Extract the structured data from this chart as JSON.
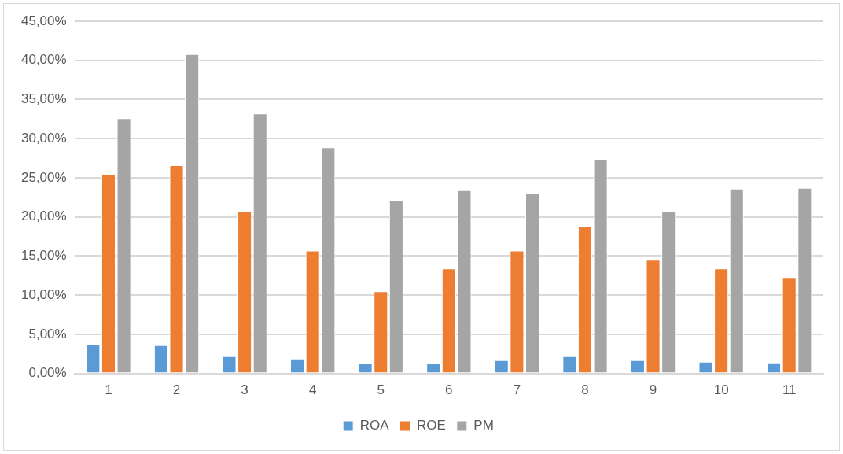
{
  "chart_data": {
    "type": "bar",
    "categories": [
      "1",
      "2",
      "3",
      "4",
      "5",
      "6",
      "7",
      "8",
      "9",
      "10",
      "11"
    ],
    "series": [
      {
        "name": "ROA",
        "color": "#5b9bd5",
        "values": [
          3.7,
          3.6,
          2.2,
          1.9,
          1.3,
          1.3,
          1.7,
          2.2,
          1.7,
          1.5,
          1.4
        ]
      },
      {
        "name": "ROE",
        "color": "#ed7d31",
        "values": [
          25.4,
          26.6,
          20.7,
          15.7,
          10.5,
          13.4,
          15.7,
          18.8,
          14.5,
          13.4,
          12.3
        ]
      },
      {
        "name": "PM",
        "color": "#a5a5a5",
        "values": [
          32.6,
          40.8,
          33.2,
          28.9,
          22.1,
          23.4,
          23.0,
          27.4,
          20.7,
          23.6,
          23.7
        ]
      }
    ],
    "ylim": [
      0,
      45
    ],
    "yticks": [
      {
        "value": 0,
        "label": "0,00%"
      },
      {
        "value": 5,
        "label": "5,00%"
      },
      {
        "value": 10,
        "label": "10,00%"
      },
      {
        "value": 15,
        "label": "15,00%"
      },
      {
        "value": 20,
        "label": "20,00%"
      },
      {
        "value": 25,
        "label": "25,00%"
      },
      {
        "value": 30,
        "label": "30,00%"
      },
      {
        "value": 35,
        "label": "35,00%"
      },
      {
        "value": 40,
        "label": "40,00%"
      },
      {
        "value": 45,
        "label": "45,00%"
      }
    ],
    "grid": "y",
    "legend": "bottom"
  }
}
